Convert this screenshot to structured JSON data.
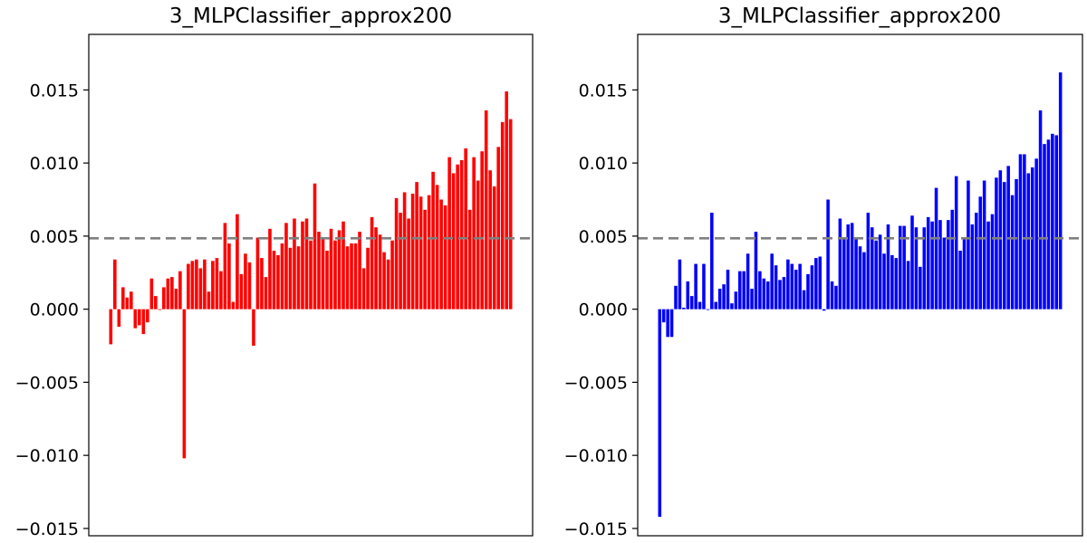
{
  "chart_data": [
    {
      "type": "bar",
      "title": "3_MLPClassifier_approx200",
      "xlabel": "",
      "ylabel": "",
      "ylim": [
        -0.0155,
        0.0188
      ],
      "yticks": [
        -0.015,
        -0.01,
        -0.005,
        0.0,
        0.005,
        0.01,
        0.015
      ],
      "ytick_labels": [
        "−0.015",
        "−0.010",
        "−0.005",
        "0.000",
        "0.005",
        "0.010",
        "0.015"
      ],
      "color": "#ff0000",
      "reference_line": 0.00485,
      "values": [
        -0.0024,
        0.0034,
        -0.0012,
        0.0015,
        0.0008,
        0.0012,
        -0.0013,
        -0.0011,
        -0.0017,
        -0.0009,
        0.0021,
        0.0009,
        0.0,
        0.0015,
        0.0021,
        0.0022,
        0.0014,
        0.0026,
        -0.0102,
        0.0031,
        0.0033,
        0.0034,
        0.0028,
        0.0034,
        0.0012,
        0.0033,
        0.0035,
        0.0026,
        0.0059,
        0.0045,
        0.0005,
        0.0065,
        0.0024,
        0.0038,
        0.0032,
        -0.0025,
        0.0049,
        0.0035,
        0.0022,
        0.0055,
        0.004,
        0.0037,
        0.0045,
        0.0059,
        0.0042,
        0.0062,
        0.0043,
        0.006,
        0.0062,
        0.0047,
        0.0086,
        0.0053,
        0.0048,
        0.004,
        0.0055,
        0.0047,
        0.0054,
        0.006,
        0.0043,
        0.0045,
        0.0045,
        0.0053,
        0.0028,
        0.0042,
        0.0063,
        0.0056,
        0.0051,
        0.0039,
        0.0034,
        0.0047,
        0.0076,
        0.0066,
        0.008,
        0.0062,
        0.0079,
        0.0087,
        0.0077,
        0.0068,
        0.0078,
        0.0094,
        0.0085,
        0.0075,
        0.0071,
        0.0104,
        0.0093,
        0.0099,
        0.0102,
        0.011,
        0.0068,
        0.0104,
        0.0088,
        0.0108,
        0.0136,
        0.0095,
        0.0084,
        0.0111,
        0.0128,
        0.0149,
        0.013
      ]
    },
    {
      "type": "bar",
      "title": "3_MLPClassifier_approx200",
      "xlabel": "",
      "ylabel": "",
      "ylim": [
        -0.0155,
        0.0188
      ],
      "yticks": [
        -0.015,
        -0.01,
        -0.005,
        0.0,
        0.005,
        0.01,
        0.015
      ],
      "ytick_labels": [
        "−0.015",
        "−0.010",
        "−0.005",
        "0.000",
        "0.005",
        "0.010",
        "0.015"
      ],
      "color": "#0000ff",
      "reference_line": 0.00485,
      "values": [
        -0.0142,
        -0.0009,
        -0.0019,
        -0.0019,
        0.0016,
        0.0034,
        0.0001,
        0.0019,
        0.0009,
        0.0031,
        0.0005,
        0.0031,
        0.0,
        0.0066,
        0.0005,
        0.0014,
        0.0017,
        0.0027,
        0.0004,
        0.0012,
        0.0026,
        0.0026,
        0.0038,
        0.0014,
        0.0053,
        0.0026,
        0.0021,
        0.0019,
        0.0038,
        0.003,
        0.002,
        0.0022,
        0.0034,
        0.0031,
        0.0027,
        0.0031,
        0.0013,
        0.0024,
        0.003,
        0.0035,
        0.0036,
        -0.0001,
        0.0075,
        0.0019,
        0.0016,
        0.0062,
        0.0048,
        0.0058,
        0.0059,
        0.0048,
        0.0043,
        0.0039,
        0.0066,
        0.0056,
        0.0047,
        0.0051,
        0.0038,
        0.0058,
        0.0037,
        0.0035,
        0.0057,
        0.0057,
        0.0033,
        0.0064,
        0.0056,
        0.0029,
        0.0056,
        0.0063,
        0.006,
        0.0083,
        0.0061,
        0.0049,
        0.0061,
        0.0068,
        0.0091,
        0.004,
        0.0049,
        0.0088,
        0.0058,
        0.0066,
        0.0077,
        0.0088,
        0.006,
        0.0065,
        0.009,
        0.0095,
        0.0087,
        0.0098,
        0.0078,
        0.0089,
        0.0106,
        0.0106,
        0.0093,
        0.0097,
        0.0103,
        0.0136,
        0.0113,
        0.0116,
        0.012,
        0.0119,
        0.0162
      ]
    }
  ]
}
